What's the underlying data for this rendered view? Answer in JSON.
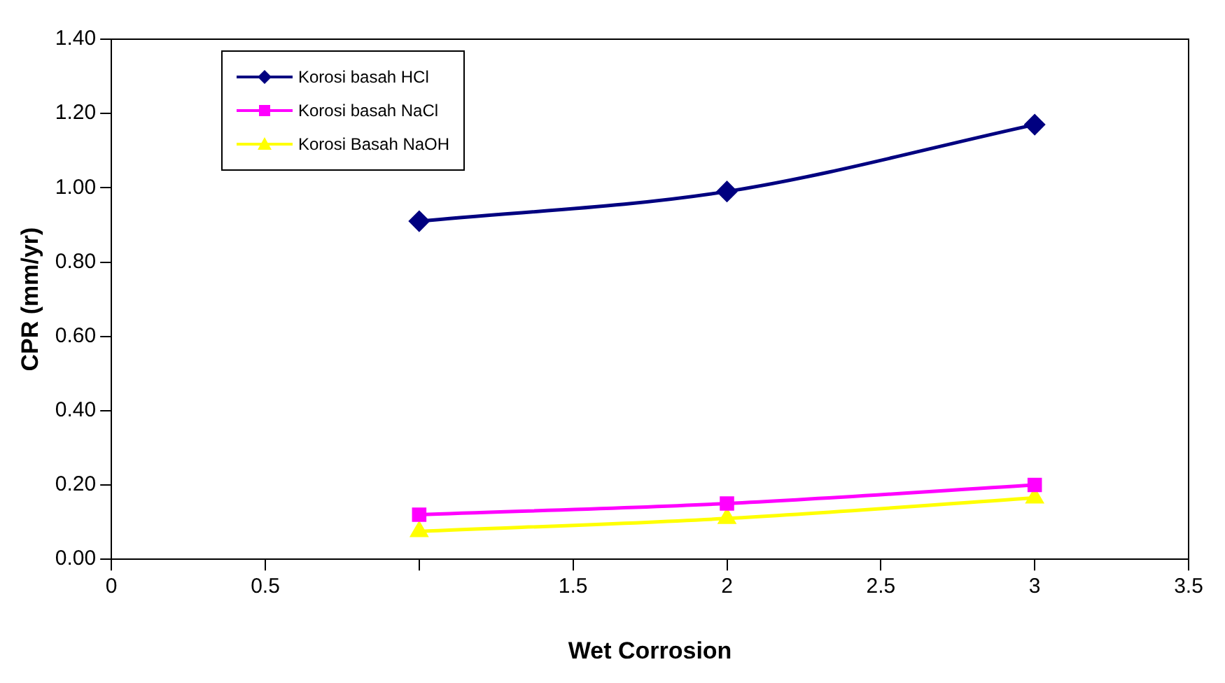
{
  "chart_data": {
    "type": "line",
    "xlabel": "Wet Corrosion",
    "ylabel": "CPR (mm/yr)",
    "x": [
      1,
      2,
      3
    ],
    "xlim": [
      0,
      3.5
    ],
    "xticks": [
      0,
      0.5,
      {
        "value": 1,
        "label": null
      },
      1.5,
      2,
      2.5,
      3,
      3.5
    ],
    "ylim": [
      0,
      1.4
    ],
    "yticks": [
      {
        "value": 0,
        "label": "0.00"
      },
      {
        "value": 0.2,
        "label": "0.20"
      },
      {
        "value": 0.4,
        "label": "0.40"
      },
      {
        "value": 0.6,
        "label": "0.60"
      },
      {
        "value": 0.8,
        "label": "0.80"
      },
      {
        "value": 1,
        "label": "1.00"
      },
      {
        "value": 1.2,
        "label": "1.20"
      },
      {
        "value": 1.4,
        "label": "1.40"
      }
    ],
    "grid": false,
    "legend": "top left",
    "series": [
      {
        "name": "Korosi basah HCl",
        "color": "#000080",
        "marker": "diamond",
        "values": [
          0.91,
          0.99,
          1.17
        ]
      },
      {
        "name": "Korosi basah NaCl",
        "color": "#ff00ff",
        "marker": "square",
        "values": [
          0.12,
          0.15,
          0.2
        ]
      },
      {
        "name": "Korosi Basah NaOH",
        "color": "#ffff00",
        "marker": "triangle",
        "values": [
          0.075,
          0.11,
          0.165
        ]
      }
    ]
  }
}
